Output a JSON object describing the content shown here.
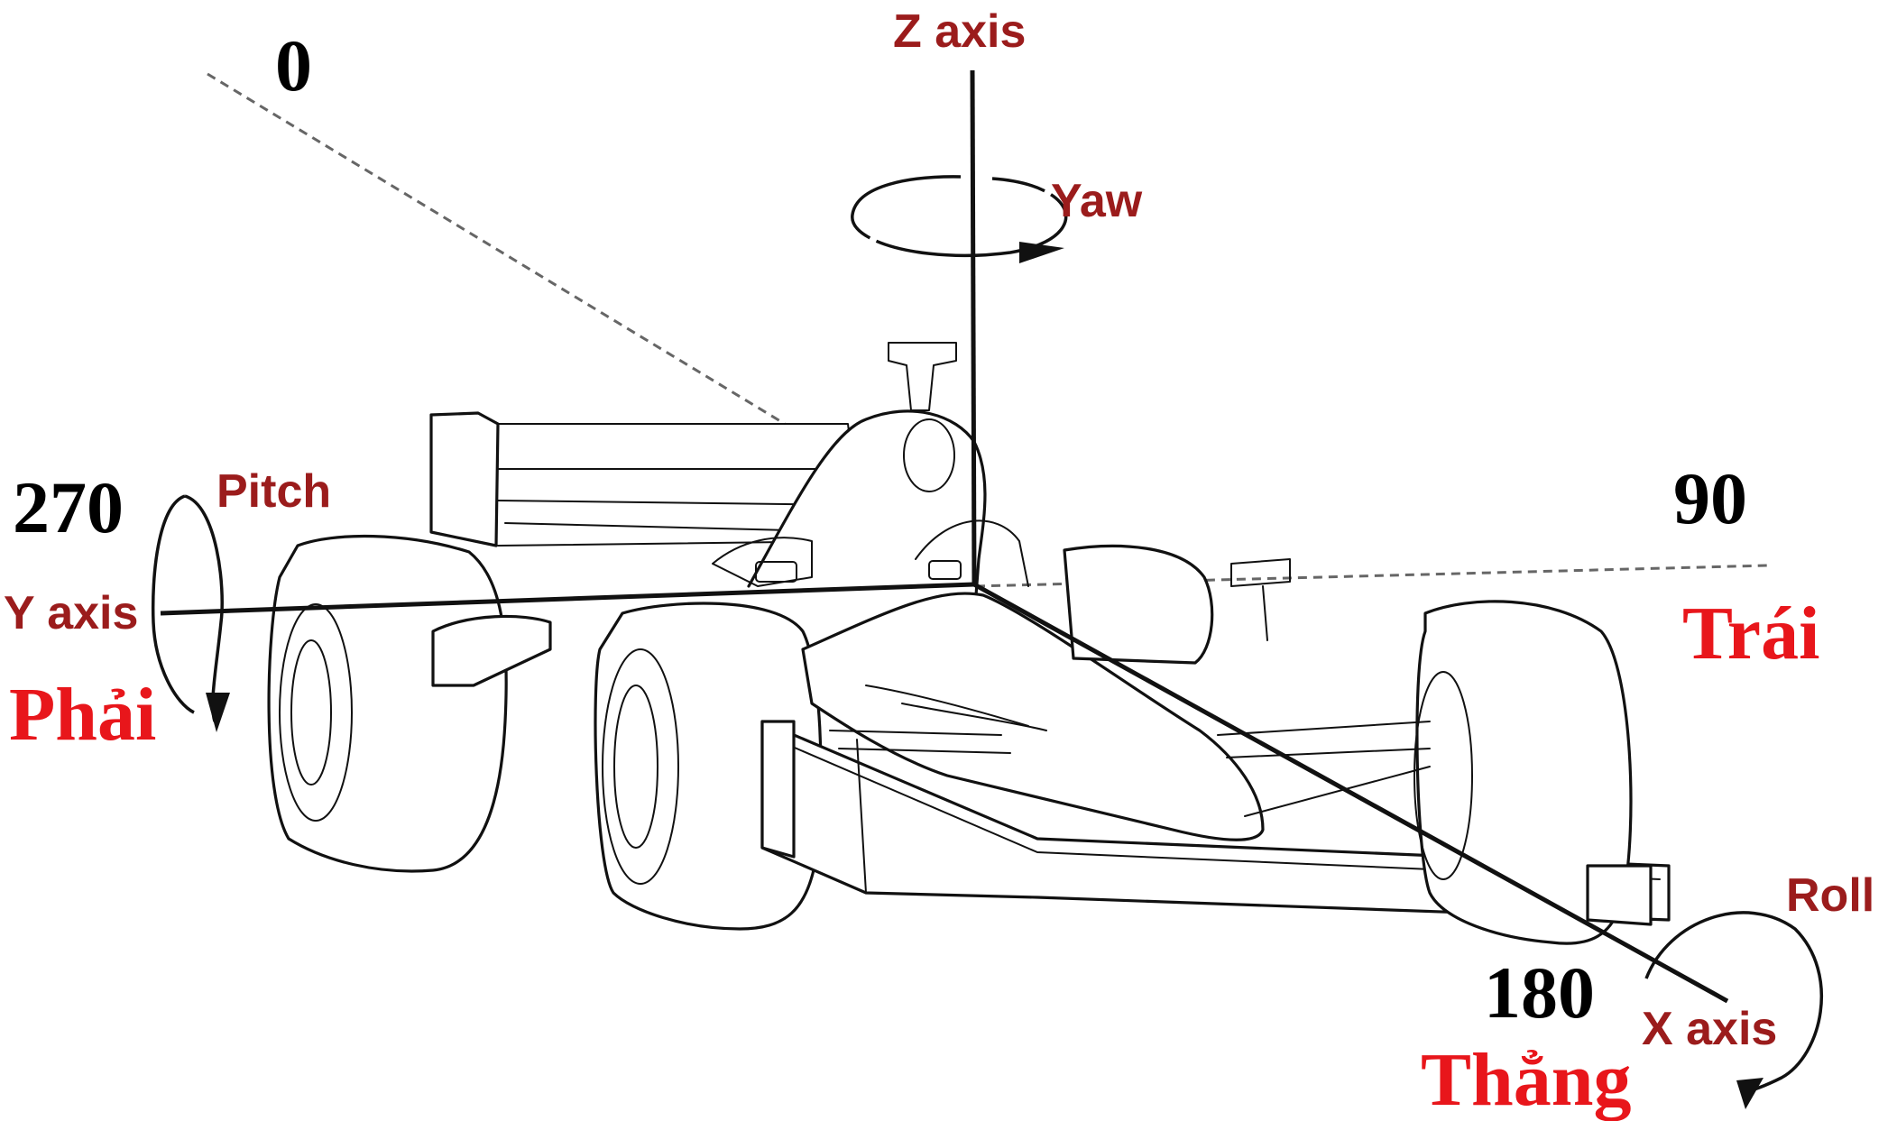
{
  "axes": {
    "z": {
      "label": "Z axis",
      "rotation": "Yaw"
    },
    "y": {
      "label": "Y axis",
      "rotation": "Pitch"
    },
    "x": {
      "label": "X axis",
      "rotation": "Roll"
    }
  },
  "headings": {
    "deg_0": "0",
    "deg_90": "90",
    "deg_180": "180",
    "deg_270": "270"
  },
  "directions": {
    "right": "Phải",
    "left": "Trái",
    "straight": "Thẳng"
  },
  "colors": {
    "axis_label": "#9b1c1c",
    "direction_label": "#e8161b",
    "degree_label": "#000000",
    "line_art": "#111111",
    "dashed_reference": "#666666"
  }
}
